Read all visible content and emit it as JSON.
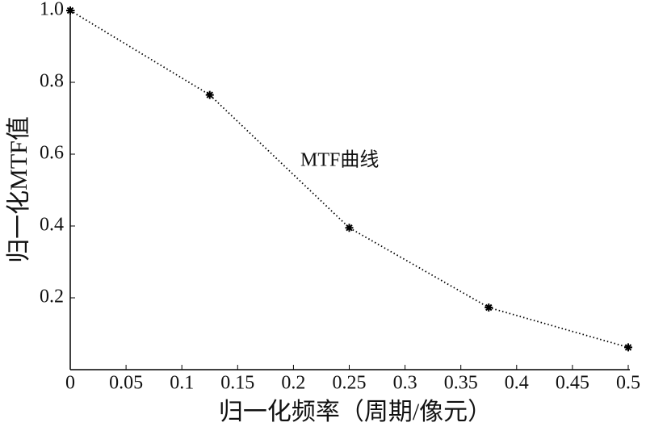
{
  "chart_data": {
    "type": "line",
    "xlabel": "归一化频率（周期/像元）",
    "ylabel": "归一化MTF值",
    "annotation": "MTF曲线",
    "x": [
      0,
      0.125,
      0.25,
      0.375,
      0.5
    ],
    "values": [
      1.0,
      0.765,
      0.395,
      0.173,
      0.062
    ],
    "color": "#000000",
    "xlim": [
      0,
      0.5
    ],
    "ylim": [
      0,
      1.0
    ],
    "xticks": [
      0,
      0.05,
      0.1,
      0.15,
      0.2,
      0.25,
      0.3,
      0.35,
      0.4,
      0.45,
      0.5
    ],
    "yticks": [
      0.2,
      0.4,
      0.6,
      0.8,
      {
        "value": 1.0,
        "label": "1.0"
      }
    ]
  }
}
